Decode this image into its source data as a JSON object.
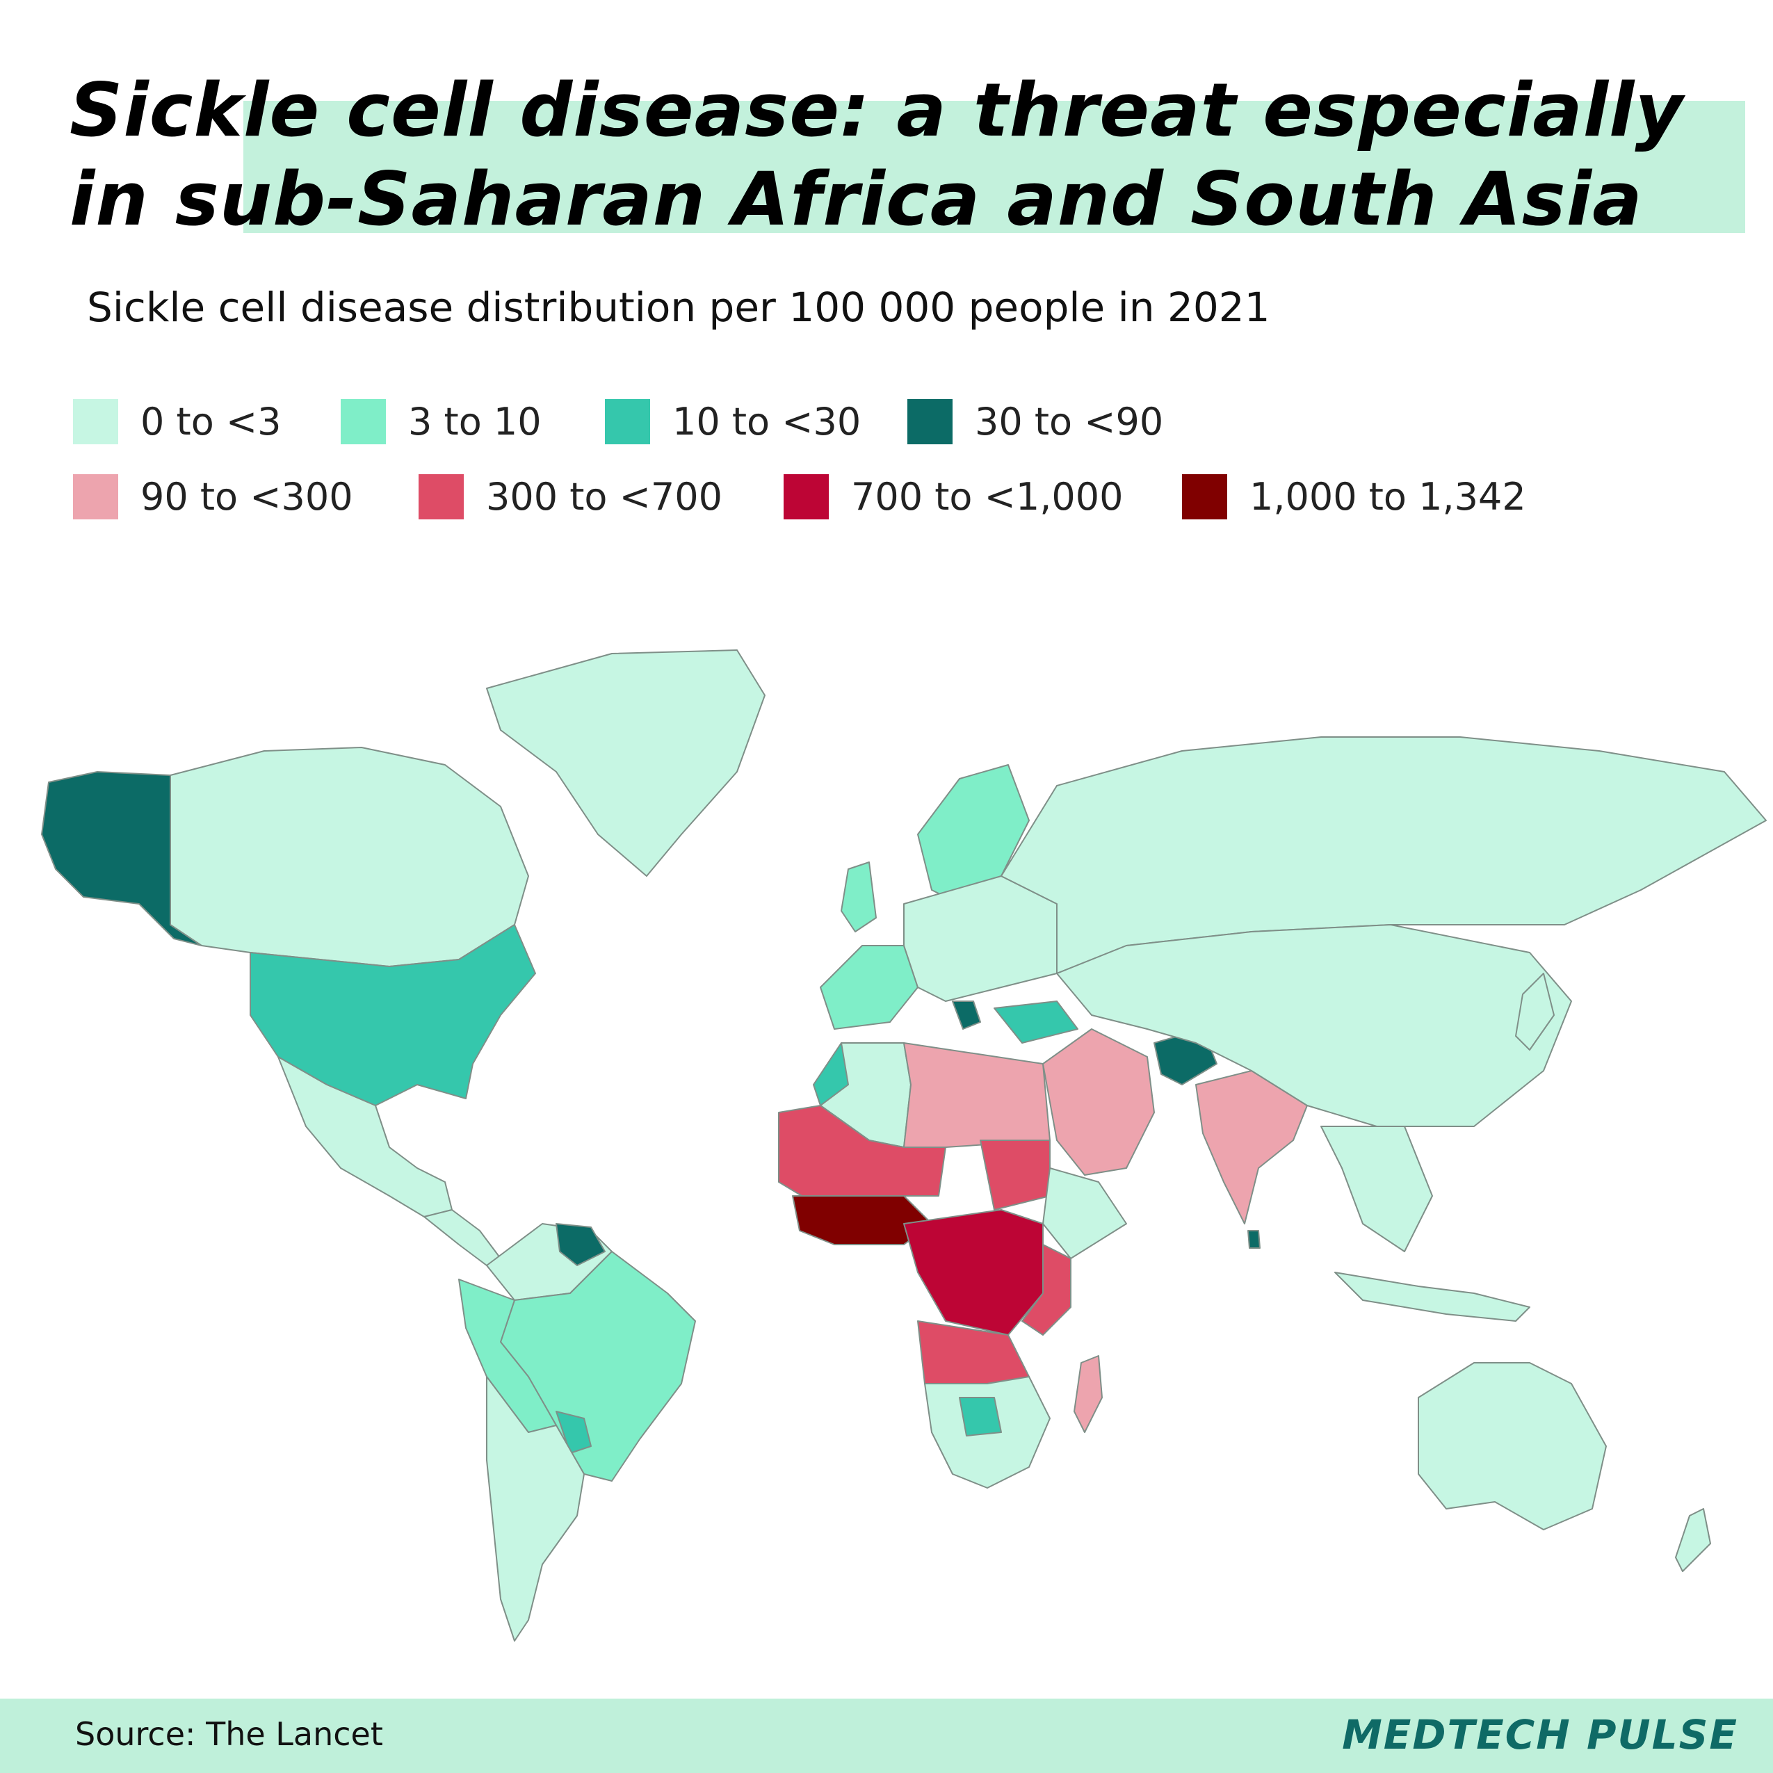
{
  "title": "Sickle cell disease: a threat especially in sub-Saharan Africa and South Asia",
  "subtitle": "Sickle cell disease distribution per 100 000 people in 2021",
  "legend": [
    {
      "label": "0 to <3",
      "color": "#c6f6e3"
    },
    {
      "label": "3 to 10",
      "color": "#7feec8"
    },
    {
      "label": "10 to <30",
      "color": "#35c7ac"
    },
    {
      "label": "30 to <90",
      "color": "#0c6b66"
    },
    {
      "label": "90 to <300",
      "color": "#eda4ae"
    },
    {
      "label": "300 to <700",
      "color": "#de4c66"
    },
    {
      "label": "700 to <1,000",
      "color": "#bd0535"
    },
    {
      "label": "1,000 to 1,342",
      "color": "#800000"
    }
  ],
  "no_data_color": "#c4c4c4",
  "footer": {
    "source": "Source: The Lancet",
    "brand": "MEDTECH PULSE"
  }
}
